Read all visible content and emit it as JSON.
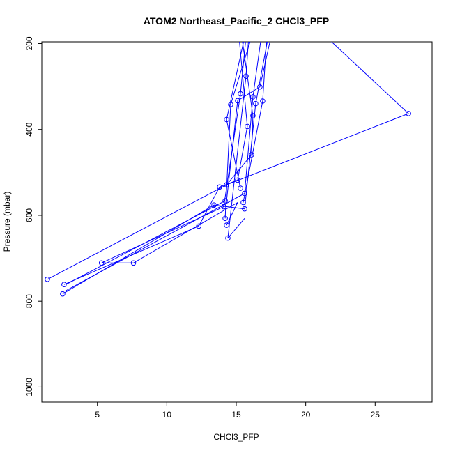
{
  "chart_data": {
    "type": "scatter",
    "title": "ATOM2 Northeast_Pacific_2 CHCl3_PFP",
    "xlabel": "CHCl3_PFP",
    "ylabel": "Pressure (mbar)",
    "xlim": [
      1.0,
      29.1
    ],
    "ylim": [
      1035,
      196
    ],
    "y_reversed": true,
    "x_ticks": [
      5,
      10,
      15,
      20,
      25
    ],
    "y_ticks": [
      200,
      400,
      600,
      800,
      1000
    ],
    "color": "#0000ff",
    "marker": "open-circle",
    "grid": false,
    "legend": "none",
    "series": [
      {
        "points": [
          {
            "x": 15.7,
            "y": 276
          },
          {
            "x": 16.9,
            "y": 334
          },
          {
            "x": 16.7,
            "y": 301
          },
          {
            "x": 16.2,
            "y": 324
          },
          {
            "x": 16.4,
            "y": 340
          },
          {
            "x": 15.3,
            "y": 317
          },
          {
            "x": 15.1,
            "y": 333
          },
          {
            "x": 14.6,
            "y": 342
          },
          {
            "x": 14.3,
            "y": 377
          },
          {
            "x": 16.2,
            "y": 368
          },
          {
            "x": 15.8,
            "y": 393
          },
          {
            "x": 27.4,
            "y": 363
          },
          {
            "x": 16.1,
            "y": 459
          },
          {
            "x": 15.1,
            "y": 518
          },
          {
            "x": 13.8,
            "y": 534
          },
          {
            "x": 15.3,
            "y": 537
          },
          {
            "x": 14.3,
            "y": 529
          },
          {
            "x": 15.6,
            "y": 549
          },
          {
            "x": 14.2,
            "y": 566
          },
          {
            "x": 15.5,
            "y": 570
          },
          {
            "x": 13.4,
            "y": 576
          },
          {
            "x": 14.1,
            "y": 580
          },
          {
            "x": 15.6,
            "y": 585
          },
          {
            "x": 14.2,
            "y": 607
          },
          {
            "x": 14.3,
            "y": 623
          },
          {
            "x": 12.3,
            "y": 625
          },
          {
            "x": 14.4,
            "y": 653
          },
          {
            "x": 5.3,
            "y": 711
          },
          {
            "x": 7.6,
            "y": 711
          },
          {
            "x": 1.4,
            "y": 749
          },
          {
            "x": 2.6,
            "y": 761
          },
          {
            "x": 2.5,
            "y": 783
          }
        ]
      }
    ],
    "profile_lines": [
      [
        [
          15.9,
          185
        ],
        [
          15.7,
          276
        ],
        [
          14.4,
          653
        ]
      ],
      [
        [
          17.2,
          185
        ],
        [
          16.9,
          334
        ],
        [
          15.5,
          570
        ]
      ],
      [
        [
          17.5,
          185
        ],
        [
          16.7,
          301
        ],
        [
          15.1,
          333
        ],
        [
          14.3,
          566
        ]
      ],
      [
        [
          15.7,
          185
        ],
        [
          15.3,
          317
        ],
        [
          14.1,
          580
        ]
      ],
      [
        [
          16.1,
          185
        ],
        [
          14.6,
          342
        ],
        [
          14.2,
          607
        ]
      ],
      [
        [
          15.6,
          185
        ],
        [
          14.3,
          377
        ],
        [
          15.3,
          537
        ]
      ],
      [
        [
          17.3,
          185
        ],
        [
          16.4,
          340
        ],
        [
          15.6,
          585
        ]
      ],
      [
        [
          16.8,
          185
        ],
        [
          16.2,
          324
        ],
        [
          15.6,
          549
        ]
      ],
      [
        [
          15.4,
          185
        ],
        [
          16.2,
          368
        ],
        [
          16.1,
          459
        ],
        [
          14.3,
          529
        ]
      ],
      [
        [
          15.2,
          185
        ],
        [
          15.8,
          393
        ],
        [
          15.1,
          518
        ],
        [
          13.8,
          534
        ]
      ],
      [
        [
          21.5,
          185
        ],
        [
          27.4,
          363
        ],
        [
          14.3,
          529
        ],
        [
          1.4,
          749
        ]
      ],
      [
        [
          13.8,
          534
        ],
        [
          12.3,
          625
        ],
        [
          2.6,
          761
        ]
      ],
      [
        [
          14.3,
          623
        ],
        [
          15.1,
          570
        ]
      ],
      [
        [
          15.6,
          585
        ],
        [
          13.4,
          576
        ],
        [
          2.5,
          783
        ]
      ],
      [
        [
          14.2,
          566
        ],
        [
          2.8,
          760
        ]
      ],
      [
        [
          14.1,
          580
        ],
        [
          5.3,
          711
        ],
        [
          7.6,
          711
        ],
        [
          15.1,
          570
        ]
      ],
      [
        [
          15.6,
          549
        ],
        [
          2.7,
          776
        ]
      ],
      [
        [
          14.4,
          653
        ],
        [
          15.6,
          607
        ]
      ]
    ]
  }
}
